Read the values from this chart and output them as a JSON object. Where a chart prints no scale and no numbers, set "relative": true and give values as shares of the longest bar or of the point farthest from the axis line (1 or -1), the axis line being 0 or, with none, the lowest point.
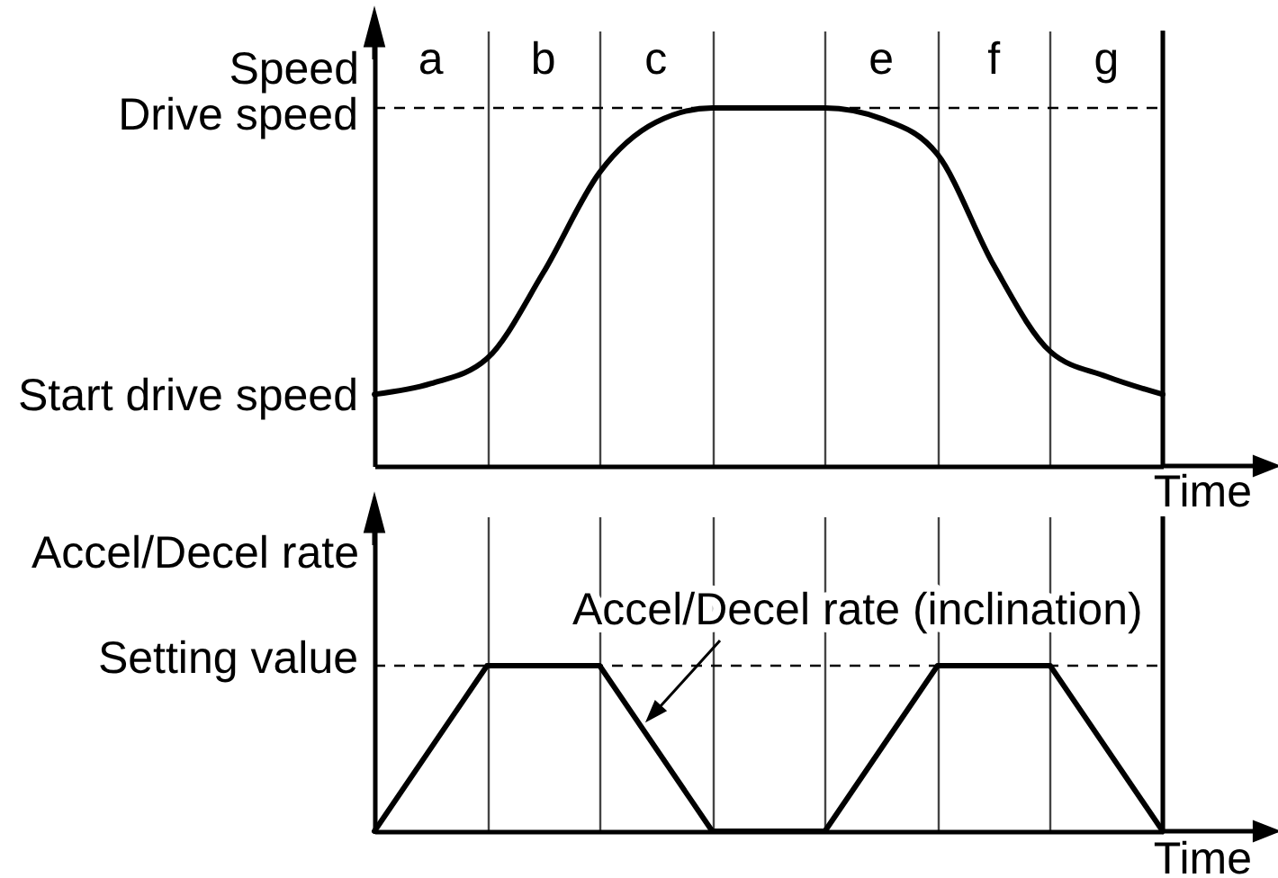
{
  "chart_data": [
    {
      "type": "line",
      "ylabel": "Speed",
      "xlabel": "Time",
      "relative": true,
      "categories": [
        null,
        "a",
        null,
        "b",
        null,
        "c",
        null,
        null,
        null,
        "e",
        null,
        "f",
        null,
        "g",
        null
      ],
      "values": [
        0.2,
        0.23,
        0.3,
        0.54,
        0.82,
        0.96,
        1,
        1,
        1,
        0.97,
        0.87,
        0.56,
        0.32,
        0.25,
        0.2
      ],
      "color": "#000000",
      "grid": "x",
      "ref_lines": [
        {
          "axis": "y",
          "value": 1,
          "label": "Drive speed",
          "line_style": "dashed"
        }
      ],
      "annotations": [
        "Start drive speed"
      ]
    },
    {
      "type": "line",
      "ylabel": "Accel/Decel rate",
      "xlabel": "Time",
      "relative": true,
      "categories": [
        null,
        null,
        null,
        null,
        null,
        null,
        null,
        null
      ],
      "values": [
        0,
        1,
        1,
        0,
        0,
        1,
        1,
        0
      ],
      "color": "#000000",
      "grid": "x",
      "ref_lines": [
        {
          "axis": "y",
          "value": 1,
          "label": "Setting value",
          "line_style": "dashed"
        }
      ],
      "annotations": [
        "Accel/Decel rate (inclination)"
      ]
    }
  ]
}
